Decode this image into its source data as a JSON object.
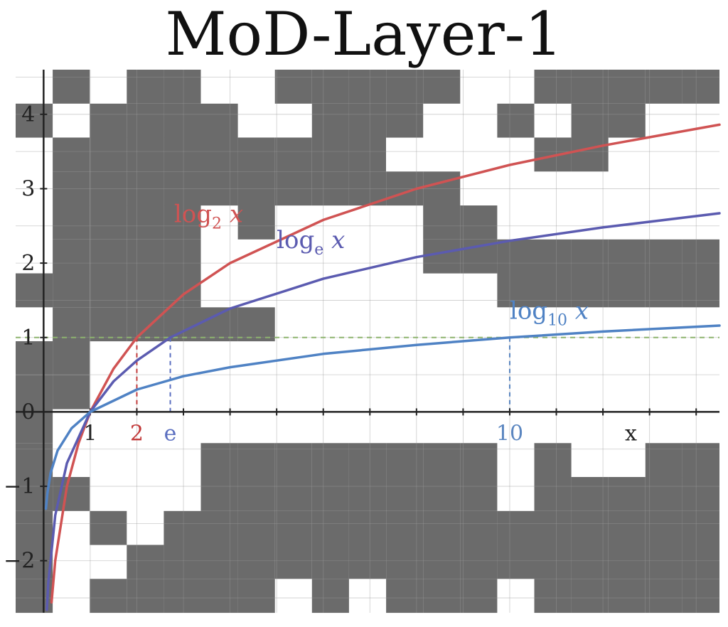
{
  "title": "MoD-Layer-1",
  "colors": {
    "background": "#ffffff",
    "mask_cell": "#6b6b6b",
    "grid": "#9a9a9a",
    "axis": "#222222",
    "reference_line": "#8db36e"
  },
  "chart_data": {
    "type": "line",
    "title": "MoD-Layer-1",
    "xlabel": "x",
    "ylabel": "",
    "xlim": [
      -0.6,
      14.5
    ],
    "ylim": [
      -2.7,
      4.6
    ],
    "grid": true,
    "x_tick_labels": [
      {
        "x": 1,
        "text": "1",
        "color": "#222222"
      },
      {
        "x": 2,
        "text": "2",
        "color": "#c23b3b"
      },
      {
        "x": 2.718,
        "text": "e",
        "color": "#5b6fc0"
      },
      {
        "x": 10,
        "text": "10",
        "color": "#5b86c0"
      },
      {
        "x": 12.6,
        "text": "x",
        "color": "#222222"
      }
    ],
    "y_tick_labels": [
      {
        "y": 4,
        "text": "4"
      },
      {
        "y": 3,
        "text": "3"
      },
      {
        "y": 2,
        "text": "2"
      },
      {
        "y": 1,
        "text": "1"
      },
      {
        "y": 0,
        "text": "0"
      },
      {
        "y": -1,
        "text": "−1"
      },
      {
        "y": -2,
        "text": "−2"
      }
    ],
    "reference_line": {
      "y": 1
    },
    "markers": [
      {
        "x": 2,
        "y": 1,
        "color": "#c23b3b"
      },
      {
        "x": 2.718,
        "y": 1,
        "color": "#5b6fc0"
      },
      {
        "x": 10,
        "y": 1,
        "color": "#5b86c0"
      }
    ],
    "series": [
      {
        "name": "log2 x",
        "base": "2",
        "sub": "2",
        "color": "#d05353",
        "label_at": [
          2.8,
          2.55
        ],
        "x": [
          0.17,
          0.25,
          0.5,
          0.75,
          1,
          1.5,
          2,
          3,
          4,
          6,
          8,
          10,
          12,
          14.5
        ],
        "y": [
          -2.56,
          -2.0,
          -1.0,
          -0.42,
          0,
          0.58,
          1.0,
          1.58,
          2.0,
          2.58,
          3.0,
          3.32,
          3.58,
          3.86
        ]
      },
      {
        "name": "loge x",
        "base": "e",
        "sub": "e",
        "color": "#5b5bb0",
        "label_at": [
          5.0,
          2.2
        ],
        "x": [
          0.07,
          0.1,
          0.25,
          0.5,
          1,
          1.5,
          2,
          2.718,
          4,
          6,
          8,
          10,
          12,
          14.5
        ],
        "y": [
          -2.66,
          -2.3,
          -1.39,
          -0.69,
          0,
          0.41,
          0.69,
          1.0,
          1.39,
          1.79,
          2.08,
          2.3,
          2.48,
          2.67
        ]
      },
      {
        "name": "log10 x",
        "base": "10",
        "sub": "10",
        "color": "#4f82c4",
        "label_at": [
          10.0,
          1.25
        ],
        "x": [
          0.05,
          0.08,
          0.15,
          0.3,
          0.6,
          1,
          2,
          3,
          4,
          6,
          8,
          10,
          12,
          14.5
        ],
        "y": [
          -1.3,
          -1.1,
          -0.82,
          -0.52,
          -0.22,
          0,
          0.3,
          0.48,
          0.6,
          0.78,
          0.9,
          1.0,
          1.08,
          1.16
        ]
      }
    ]
  }
}
